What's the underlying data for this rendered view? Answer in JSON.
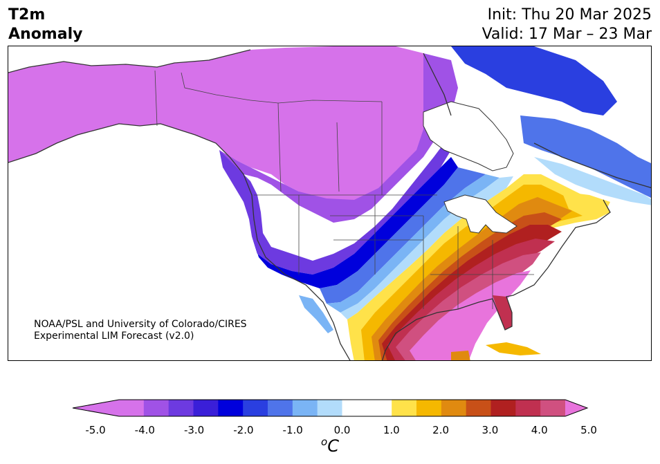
{
  "header": {
    "title_line1": "T2m",
    "title_line2": "Anomaly",
    "init": "Init: Thu 20 Mar 2025",
    "valid": "Valid: 17 Mar – 23 Mar"
  },
  "credit": {
    "line1": "NOAA/PSL and University of Colorado/CIRES",
    "line2": "Experimental LIM Forecast (v2.0)"
  },
  "colorbar": {
    "unit_base": "C",
    "unit_sup": "o",
    "tick_labels": [
      "-5.0",
      "-4.0",
      "-3.0",
      "-2.0",
      "-1.0",
      "0.0",
      "1.0",
      "2.0",
      "3.0",
      "4.0",
      "5.0"
    ],
    "colors": [
      "#d672ea",
      "#a052e6",
      "#6d3ae0",
      "#3a1fd8",
      "#0000dc",
      "#2a3fe0",
      "#4f74ea",
      "#7ab4f5",
      "#b2dcfb",
      "#ffffff",
      "#ffffff",
      "#ffe24a",
      "#f5b800",
      "#e08a10",
      "#c85018",
      "#b02020",
      "#c03050",
      "#d05080",
      "#dc64b0",
      "#e874dc"
    ]
  },
  "map": {
    "palette": {
      "purple_light": "#d672ea",
      "purple": "#a052e6",
      "violet": "#6d3ae0",
      "indigo": "#3a1fd8",
      "blue_dark": "#0000dc",
      "blue": "#2a3fe0",
      "blue_mid": "#4f74ea",
      "blue_light": "#7ab4f5",
      "blue_pale": "#b2dcfb",
      "yellow": "#ffe24a",
      "gold": "#f5b800",
      "orange": "#e08a10",
      "orange_dark": "#c85018",
      "red": "#b02020",
      "crimson": "#c03050",
      "rose": "#d05080",
      "pink": "#dc64b0",
      "magenta": "#e874dc"
    }
  }
}
